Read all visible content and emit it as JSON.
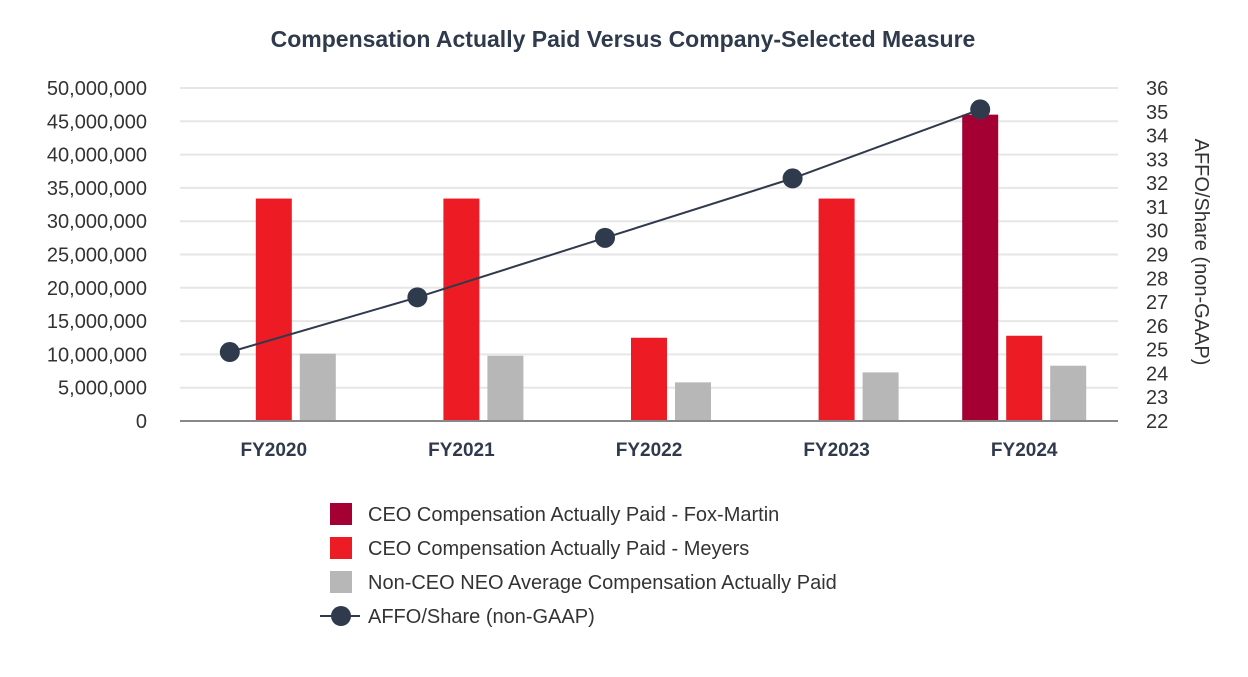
{
  "chart_data": {
    "type": "bar",
    "title": "Compensation Actually Paid Versus Company-Selected Measure",
    "categories": [
      "FY2020",
      "FY2021",
      "FY2022",
      "FY2023",
      "FY2024"
    ],
    "series": [
      {
        "name": "CEO Compensation Actually Paid - Fox-Martin",
        "type": "bar",
        "axis": "left",
        "color": "#a50034",
        "values": [
          null,
          null,
          null,
          null,
          46000000
        ]
      },
      {
        "name": "CEO Compensation Actually Paid - Meyers",
        "type": "bar",
        "axis": "left",
        "color": "#ed1c24",
        "values": [
          33400000,
          33400000,
          12500000,
          33400000,
          12800000
        ]
      },
      {
        "name": "Non-CEO NEO Average Compensation Actually Paid",
        "type": "bar",
        "axis": "left",
        "color": "#b7b7b7",
        "values": [
          10100000,
          9800000,
          5800000,
          7300000,
          8300000
        ]
      },
      {
        "name": "AFFO/Share (non-GAAP)",
        "type": "line",
        "axis": "right",
        "color": "#2f3a4c",
        "values": [
          24.9,
          27.2,
          29.7,
          32.2,
          35.1
        ]
      }
    ],
    "y_left": {
      "lim": [
        0,
        50000000
      ],
      "ticks": [
        "0",
        "5,000,000",
        "10,000,000",
        "15,000,000",
        "20,000,000",
        "25,000,000",
        "30,000,000",
        "35,000,000",
        "40,000,000",
        "45,000,000",
        "50,000,000"
      ]
    },
    "y_right": {
      "label": "AFFO/Share (non-GAAP)",
      "lim": [
        22,
        36
      ],
      "ticks": [
        "22",
        "23",
        "24",
        "25",
        "26",
        "27",
        "28",
        "29",
        "30",
        "31",
        "32",
        "33",
        "34",
        "35",
        "36"
      ]
    },
    "grid": true,
    "legend": "bottom"
  }
}
